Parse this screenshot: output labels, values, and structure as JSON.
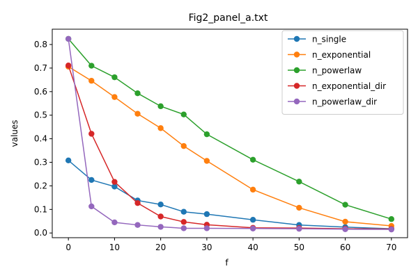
{
  "chart_data": {
    "type": "line",
    "title": "Fig2_panel_a.txt",
    "xlabel": "f",
    "ylabel": "values",
    "xlim": [
      -3.5,
      73.5
    ],
    "ylim": [
      -0.02,
      0.865
    ],
    "xticks": [
      0,
      10,
      20,
      30,
      40,
      50,
      60,
      70
    ],
    "yticks": [
      0.0,
      0.1,
      0.2,
      0.3,
      0.4,
      0.5,
      0.6,
      0.7,
      0.8
    ],
    "ytick_labels": [
      "0.0",
      "0.1",
      "0.2",
      "0.3",
      "0.4",
      "0.5",
      "0.6",
      "0.7",
      "0.8"
    ],
    "legend_position": "top-right",
    "grid": false,
    "x": [
      0,
      5,
      10,
      15,
      20,
      25,
      30,
      40,
      50,
      60,
      70
    ],
    "series": [
      {
        "name": "n_single",
        "color": "#1f77b4",
        "values": [
          0.308,
          0.225,
          0.197,
          0.138,
          0.121,
          0.09,
          0.08,
          0.056,
          0.034,
          0.025,
          0.018
        ]
      },
      {
        "name": "n_exponential",
        "color": "#ff7f0e",
        "values": [
          0.706,
          0.646,
          0.577,
          0.506,
          0.445,
          0.369,
          0.306,
          0.184,
          0.107,
          0.048,
          0.03
        ]
      },
      {
        "name": "n_powerlaw",
        "color": "#2ca02c",
        "values": [
          0.824,
          0.71,
          0.661,
          0.593,
          0.538,
          0.503,
          0.419,
          0.311,
          0.218,
          0.12,
          0.059
        ]
      },
      {
        "name": "n_exponential_dir",
        "color": "#d62728",
        "values": [
          0.711,
          0.421,
          0.217,
          0.127,
          0.07,
          0.047,
          0.035,
          0.022,
          0.021,
          0.018,
          0.017
        ]
      },
      {
        "name": "n_powerlaw_dir",
        "color": "#9467bd",
        "values": [
          0.824,
          0.113,
          0.045,
          0.034,
          0.026,
          0.02,
          0.02,
          0.019,
          0.018,
          0.016,
          0.015
        ]
      }
    ]
  }
}
